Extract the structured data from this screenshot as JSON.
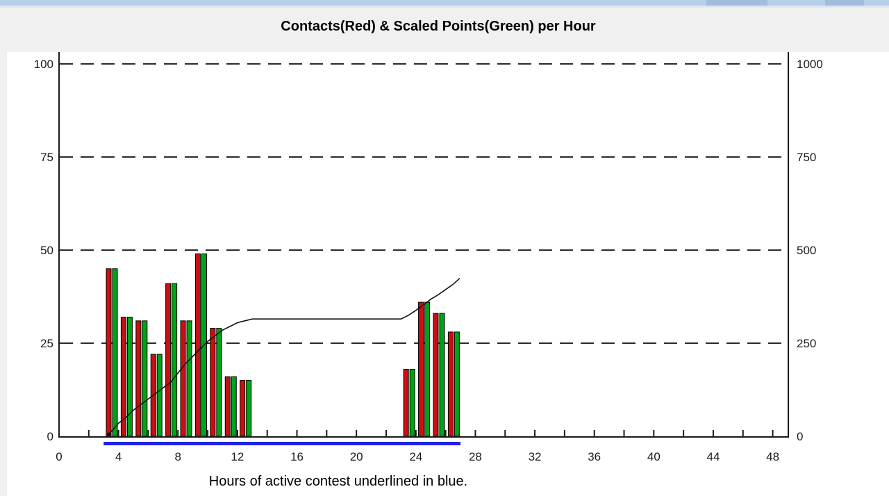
{
  "title": "Contacts(Red) & Scaled Points(Green) per Hour",
  "caption": "Hours of active contest underlined in blue.",
  "window": {
    "titlebar_color": "#b7cee9",
    "titlebar_dark_segments": [
      [
        1017,
        1105
      ],
      [
        1188,
        1244
      ]
    ],
    "page_background": "#f0f0f0",
    "panel_background": "#ffffff"
  },
  "chart_data": {
    "type": "bar",
    "title": "Contacts(Red) & Scaled Points(Green) per Hour",
    "xlabel": "Hours of active contest underlined in blue.",
    "x_axis": {
      "range": [
        0,
        49
      ],
      "labeled_ticks": [
        0,
        4,
        8,
        12,
        16,
        20,
        24,
        28,
        32,
        36,
        40,
        44,
        48
      ],
      "minor_tick_step": 2
    },
    "left_axis": {
      "series": "Contacts (Red)",
      "range": [
        0,
        100
      ],
      "ticks": [
        100,
        75,
        50,
        25,
        0
      ],
      "grid_values": [
        25,
        50,
        75,
        100
      ],
      "grid_style": "dashed"
    },
    "right_axis": {
      "series": "Scaled Points (Green)",
      "range": [
        0,
        1000
      ],
      "ticks": [
        1000,
        750,
        500,
        250,
        0
      ]
    },
    "bars": [
      {
        "bin_start": 3,
        "bin": "3-4",
        "contacts": 45,
        "scaled_points": 450
      },
      {
        "bin_start": 4,
        "bin": "4-5",
        "contacts": 32,
        "scaled_points": 320
      },
      {
        "bin_start": 5,
        "bin": "5-6",
        "contacts": 31,
        "scaled_points": 310
      },
      {
        "bin_start": 6,
        "bin": "6-7",
        "contacts": 22,
        "scaled_points": 220
      },
      {
        "bin_start": 7,
        "bin": "7-8",
        "contacts": 41,
        "scaled_points": 410
      },
      {
        "bin_start": 8,
        "bin": "8-9",
        "contacts": 31,
        "scaled_points": 310
      },
      {
        "bin_start": 9,
        "bin": "9-10",
        "contacts": 49,
        "scaled_points": 490
      },
      {
        "bin_start": 10,
        "bin": "10-11",
        "contacts": 29,
        "scaled_points": 290
      },
      {
        "bin_start": 11,
        "bin": "11-12",
        "contacts": 16,
        "scaled_points": 160
      },
      {
        "bin_start": 12,
        "bin": "12-13",
        "contacts": 15,
        "scaled_points": 150
      },
      {
        "bin_start": 23,
        "bin": "23-24",
        "contacts": 18,
        "scaled_points": 180
      },
      {
        "bin_start": 24,
        "bin": "24-25",
        "contacts": 36,
        "scaled_points": 360
      },
      {
        "bin_start": 25,
        "bin": "25-26",
        "contacts": 33,
        "scaled_points": 330
      },
      {
        "bin_start": 26,
        "bin": "26-27",
        "contacts": 28,
        "scaled_points": 280
      }
    ],
    "cumulative_line": {
      "color": "#111111",
      "points": [
        [
          3.35,
          0.5
        ],
        [
          4,
          3.5
        ],
        [
          4.5,
          5
        ],
        [
          5,
          7
        ],
        [
          5.5,
          8.5
        ],
        [
          6,
          10
        ],
        [
          6.5,
          11.5
        ],
        [
          7,
          13
        ],
        [
          7.5,
          14.5
        ],
        [
          8,
          17
        ],
        [
          8.5,
          19.5
        ],
        [
          9,
          21.5
        ],
        [
          9.5,
          23.5
        ],
        [
          10,
          25.5
        ],
        [
          10.5,
          27
        ],
        [
          11,
          28.5
        ],
        [
          11.5,
          29.5
        ],
        [
          12,
          30.5
        ],
        [
          12.5,
          31
        ],
        [
          13,
          31.5
        ],
        [
          23,
          31.5
        ],
        [
          23.5,
          32.5
        ],
        [
          24,
          33.8
        ],
        [
          24.5,
          35.3
        ],
        [
          25,
          36.8
        ],
        [
          25.5,
          38
        ],
        [
          26,
          39.4
        ],
        [
          26.5,
          40.8
        ],
        [
          26.95,
          42.4
        ]
      ]
    },
    "active_contest": {
      "start_hour": 3,
      "end_hour": 27,
      "underline_color": "#2121e8"
    },
    "colors": {
      "contacts_bar": "#c81010",
      "points_bar": "#00a315",
      "axis": "#1a1a1a",
      "grid": "#2a2a2a",
      "label": "#1a1a1a"
    },
    "legend_position": "none",
    "grid": "horizontal dashed"
  }
}
